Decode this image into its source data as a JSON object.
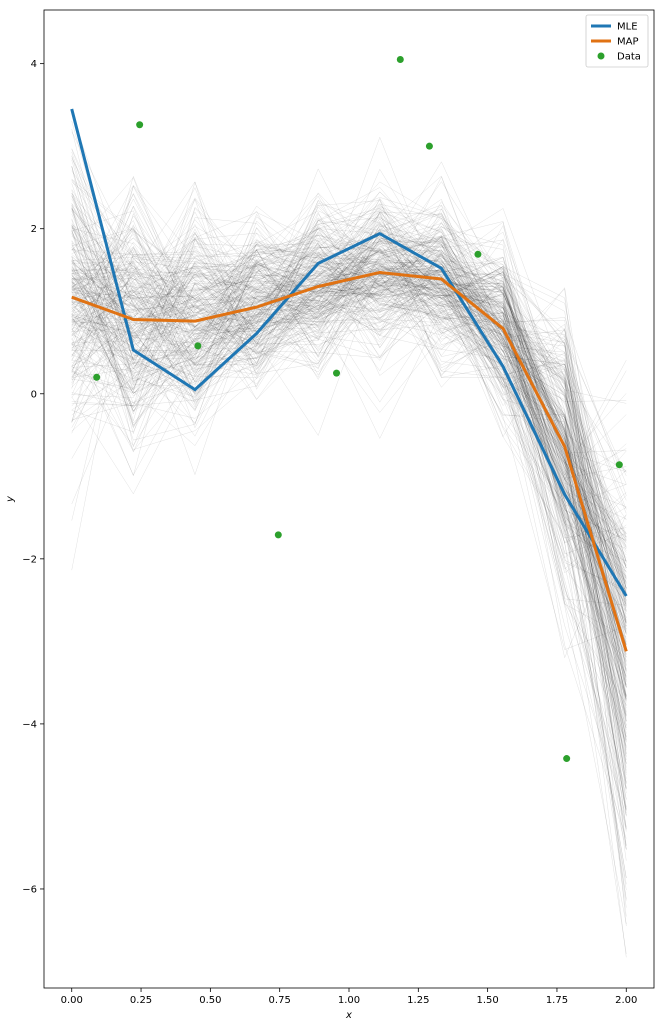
{
  "chart_data": {
    "type": "line",
    "title": "",
    "xlabel": "x",
    "ylabel": "y",
    "xlim": [
      -0.1,
      2.1
    ],
    "ylim": [
      -7.2,
      4.65
    ],
    "x_ticks": [
      0.0,
      0.25,
      0.5,
      0.75,
      1.0,
      1.25,
      1.5,
      1.75,
      2.0
    ],
    "x_tick_labels": [
      "0.00",
      "0.25",
      "0.50",
      "0.75",
      "1.00",
      "1.25",
      "1.50",
      "1.75",
      "2.00"
    ],
    "y_ticks": [
      -6,
      -4,
      -2,
      0,
      2,
      4
    ],
    "y_tick_labels": [
      "−6",
      "−4",
      "−2",
      "0",
      "2",
      "4"
    ],
    "grid": false,
    "legend_position": "top-right",
    "x": [
      0.0,
      0.2222,
      0.4444,
      0.6667,
      0.8889,
      1.1111,
      1.3333,
      1.5556,
      1.7778,
      2.0
    ],
    "series": [
      {
        "name": "MLE",
        "kind": "line",
        "color": "#1f77b4",
        "values": [
          3.45,
          0.53,
          0.05,
          0.73,
          1.58,
          1.94,
          1.52,
          0.33,
          -1.22,
          -2.45
        ]
      },
      {
        "name": "MAP",
        "kind": "line",
        "color": "#e07213",
        "values": [
          1.17,
          0.9,
          0.88,
          1.05,
          1.3,
          1.47,
          1.39,
          0.79,
          -0.64,
          -3.12
        ]
      },
      {
        "name": "Data",
        "kind": "scatter",
        "color": "#2ca02c",
        "x": [
          0.09,
          0.245,
          0.455,
          0.745,
          0.955,
          1.185,
          1.29,
          1.465,
          1.785,
          1.975
        ],
        "y": [
          0.2,
          3.26,
          0.58,
          -1.71,
          0.25,
          4.05,
          3.0,
          1.69,
          -4.42,
          -0.86
        ]
      }
    ],
    "posterior_samples": {
      "count": 300,
      "color": "#000000",
      "mean": [
        1.17,
        0.9,
        0.88,
        1.05,
        1.3,
        1.47,
        1.39,
        0.79,
        -0.64,
        -3.12
      ],
      "spread": [
        0.95,
        0.72,
        0.62,
        0.5,
        0.48,
        0.5,
        0.45,
        0.5,
        0.85,
        1.3
      ]
    }
  },
  "legend": {
    "items": [
      {
        "label": "MLE",
        "color": "#1f77b4",
        "marker": "line"
      },
      {
        "label": "MAP",
        "color": "#e07213",
        "marker": "line"
      },
      {
        "label": "Data",
        "color": "#2ca02c",
        "marker": "dot"
      }
    ]
  }
}
